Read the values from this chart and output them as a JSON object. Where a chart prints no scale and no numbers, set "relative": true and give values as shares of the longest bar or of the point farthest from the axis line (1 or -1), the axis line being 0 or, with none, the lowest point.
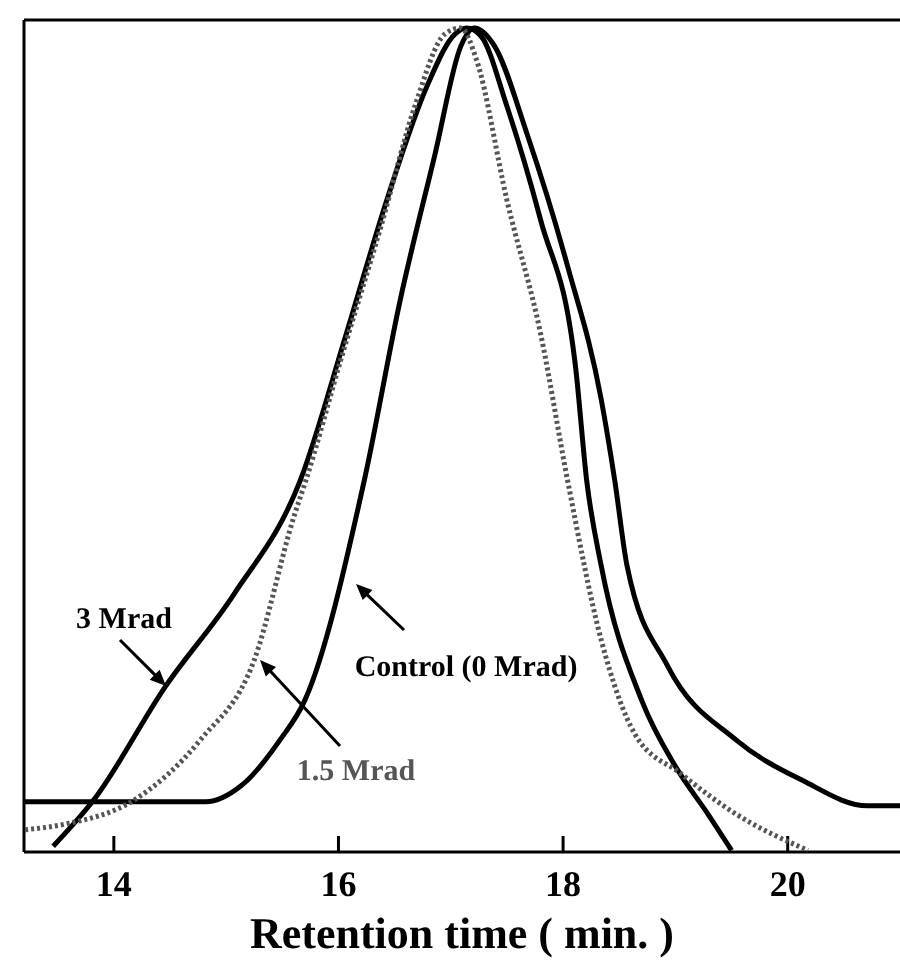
{
  "chart_data": {
    "type": "line",
    "xlabel": "Retention time ( min. )",
    "relative": true,
    "xlim": [
      13.2,
      21.0
    ],
    "xticks": [
      14,
      16,
      18,
      20
    ],
    "grid": false,
    "tick_labels": "x",
    "marker": "none",
    "series": [
      {
        "name": "Control (0 Mrad)",
        "color": "#000000",
        "line_style": "solid",
        "x": [
          13.2,
          14.82,
          15.13,
          15.48,
          15.7,
          16.23,
          16.55,
          16.86,
          17.09,
          17.21,
          17.39,
          17.68,
          18.04,
          18.34,
          18.46,
          18.57,
          18.93,
          19.54,
          20.13,
          20.71,
          21.0
        ],
        "values": [
          0.061,
          0.061,
          0.08,
          0.136,
          0.184,
          0.451,
          0.67,
          0.847,
          0.978,
          1,
          0.978,
          0.871,
          0.711,
          0.549,
          0.451,
          0.347,
          0.226,
          0.136,
          0.087,
          0.056,
          0.056
        ]
      },
      {
        "name": "3 Mrad",
        "color": "#000000",
        "line_style": "solid",
        "x": [
          13.46,
          13.82,
          14.46,
          15.07,
          15.66,
          16.07,
          16.43,
          16.79,
          17.04,
          17.14,
          17.27,
          17.5,
          17.8,
          18.11,
          18.21,
          18.34,
          18.7,
          19.0,
          19.29,
          19.5
        ],
        "values": [
          0.007,
          0.063,
          0.201,
          0.313,
          0.451,
          0.629,
          0.791,
          0.93,
          0.993,
          1,
          0.99,
          0.905,
          0.767,
          0.59,
          0.451,
          0.347,
          0.184,
          0.104,
          0.046,
          0.002
        ]
      },
      {
        "name": "1.5 Mrad",
        "color": "#555555",
        "line_style": "dotted",
        "x": [
          13.21,
          13.57,
          14.18,
          14.77,
          15.25,
          15.61,
          15.71,
          16.02,
          16.38,
          16.68,
          16.95,
          17.09,
          17.23,
          17.5,
          17.8,
          18.04,
          18.34,
          18.64,
          19.05,
          19.54,
          20.18
        ],
        "values": [
          0.027,
          0.034,
          0.063,
          0.136,
          0.233,
          0.41,
          0.451,
          0.597,
          0.76,
          0.905,
          0.993,
          1,
          0.961,
          0.791,
          0.629,
          0.451,
          0.257,
          0.143,
          0.095,
          0.046,
          0.002
        ]
      }
    ]
  }
}
